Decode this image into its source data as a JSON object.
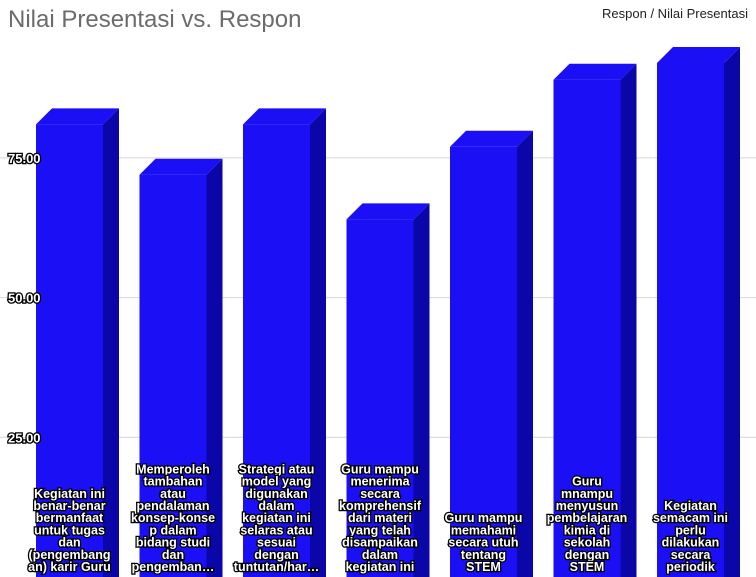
{
  "chart_data": {
    "type": "bar",
    "title": "Nilai Presentasi vs. Respon",
    "legend_label": "Respon / Nilai Presentasi",
    "legend_position": "top-right",
    "ylim": [
      0,
      97
    ],
    "yticks": [
      25,
      50,
      75
    ],
    "ytick_labels": [
      "25.00",
      "50.00",
      "75.00"
    ],
    "grid": true,
    "colors": {
      "bar_front": "#1a0ff5",
      "bar_side": "#0a06a8",
      "bar_top": "#1a0ff5"
    },
    "categories": [
      [
        "Kegiatan ini",
        "benar-benar",
        "bermanfaat",
        "untuk tugas",
        "dan",
        "(pengembang",
        "an) karir Guru"
      ],
      [
        "Memperoleh",
        "tambahan",
        "atau",
        "pendalaman",
        "konsep-konse",
        "p dalam",
        "bidang studi",
        "dan",
        "pengemban…"
      ],
      [
        "Strategi atau",
        "model yang",
        "digunakan",
        "dalam",
        "kegiatan ini",
        "selaras atau",
        "sesuai",
        "dengan",
        "tuntutan/har…"
      ],
      [
        "Guru mampu",
        "menerima",
        "secara",
        "komprehensif",
        "dari materi",
        "yang telah",
        "disampaikan",
        "dalam",
        "kegiatan ini"
      ],
      [
        "Guru mampu",
        "memahami",
        "secara utuh",
        "tentang",
        "STEM"
      ],
      [
        "Guru",
        "mnampu",
        "menyusun",
        "pembelajaran",
        "kimia di",
        "sekolah",
        "dengan",
        "STEM"
      ],
      [
        "Kegiatan",
        "semacam ini",
        "perlu",
        "dilakukan",
        "secara",
        "periodik"
      ]
    ],
    "values": [
      81,
      72,
      81,
      64,
      77,
      89,
      92
    ]
  }
}
